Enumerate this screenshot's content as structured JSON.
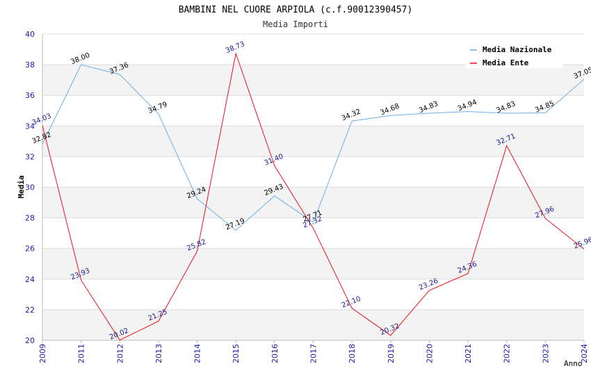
{
  "chart_data": {
    "type": "line",
    "title": "BAMBINI NEL CUORE ARPIOLA (c.f.90012390457)",
    "subtitle": "Media Importi",
    "xlabel": "Anno",
    "ylabel": "Media",
    "categories": [
      "2009",
      "2011",
      "2012",
      "2013",
      "2014",
      "2015",
      "2016",
      "2017",
      "2018",
      "2019",
      "2020",
      "2021",
      "2022",
      "2023",
      "2024"
    ],
    "ylim": [
      20,
      40
    ],
    "yticks": [
      20,
      22,
      24,
      26,
      28,
      30,
      32,
      34,
      36,
      38,
      40
    ],
    "grid": true,
    "legend_position": "top-right",
    "series": [
      {
        "name": "Media Nazionale",
        "color": "#6aaee8",
        "labels": [
          "32.82",
          "38.00",
          "37.36",
          "34.79",
          "29.24",
          "27.19",
          "29.43",
          "27.71",
          "34.32",
          "34.68",
          "34.83",
          "34.94",
          "34.83",
          "34.85",
          "37.05"
        ],
        "values": [
          32.82,
          38.0,
          37.36,
          34.79,
          29.24,
          27.19,
          29.43,
          27.71,
          34.32,
          34.68,
          34.83,
          34.94,
          34.83,
          34.85,
          37.05
        ]
      },
      {
        "name": "Media Ente",
        "color": "#e8121a",
        "labels": [
          "34.03",
          "23.93",
          "20.02",
          "21.25",
          "25.82",
          "38.73",
          "31.40",
          "27.32",
          "22.10",
          "20.32",
          "23.26",
          "24.36",
          "32.71",
          "27.96",
          "25.96"
        ],
        "values": [
          34.03,
          23.93,
          20.02,
          21.25,
          25.82,
          38.73,
          31.4,
          27.32,
          22.1,
          20.32,
          23.26,
          24.36,
          32.71,
          27.96,
          25.96
        ]
      }
    ]
  }
}
